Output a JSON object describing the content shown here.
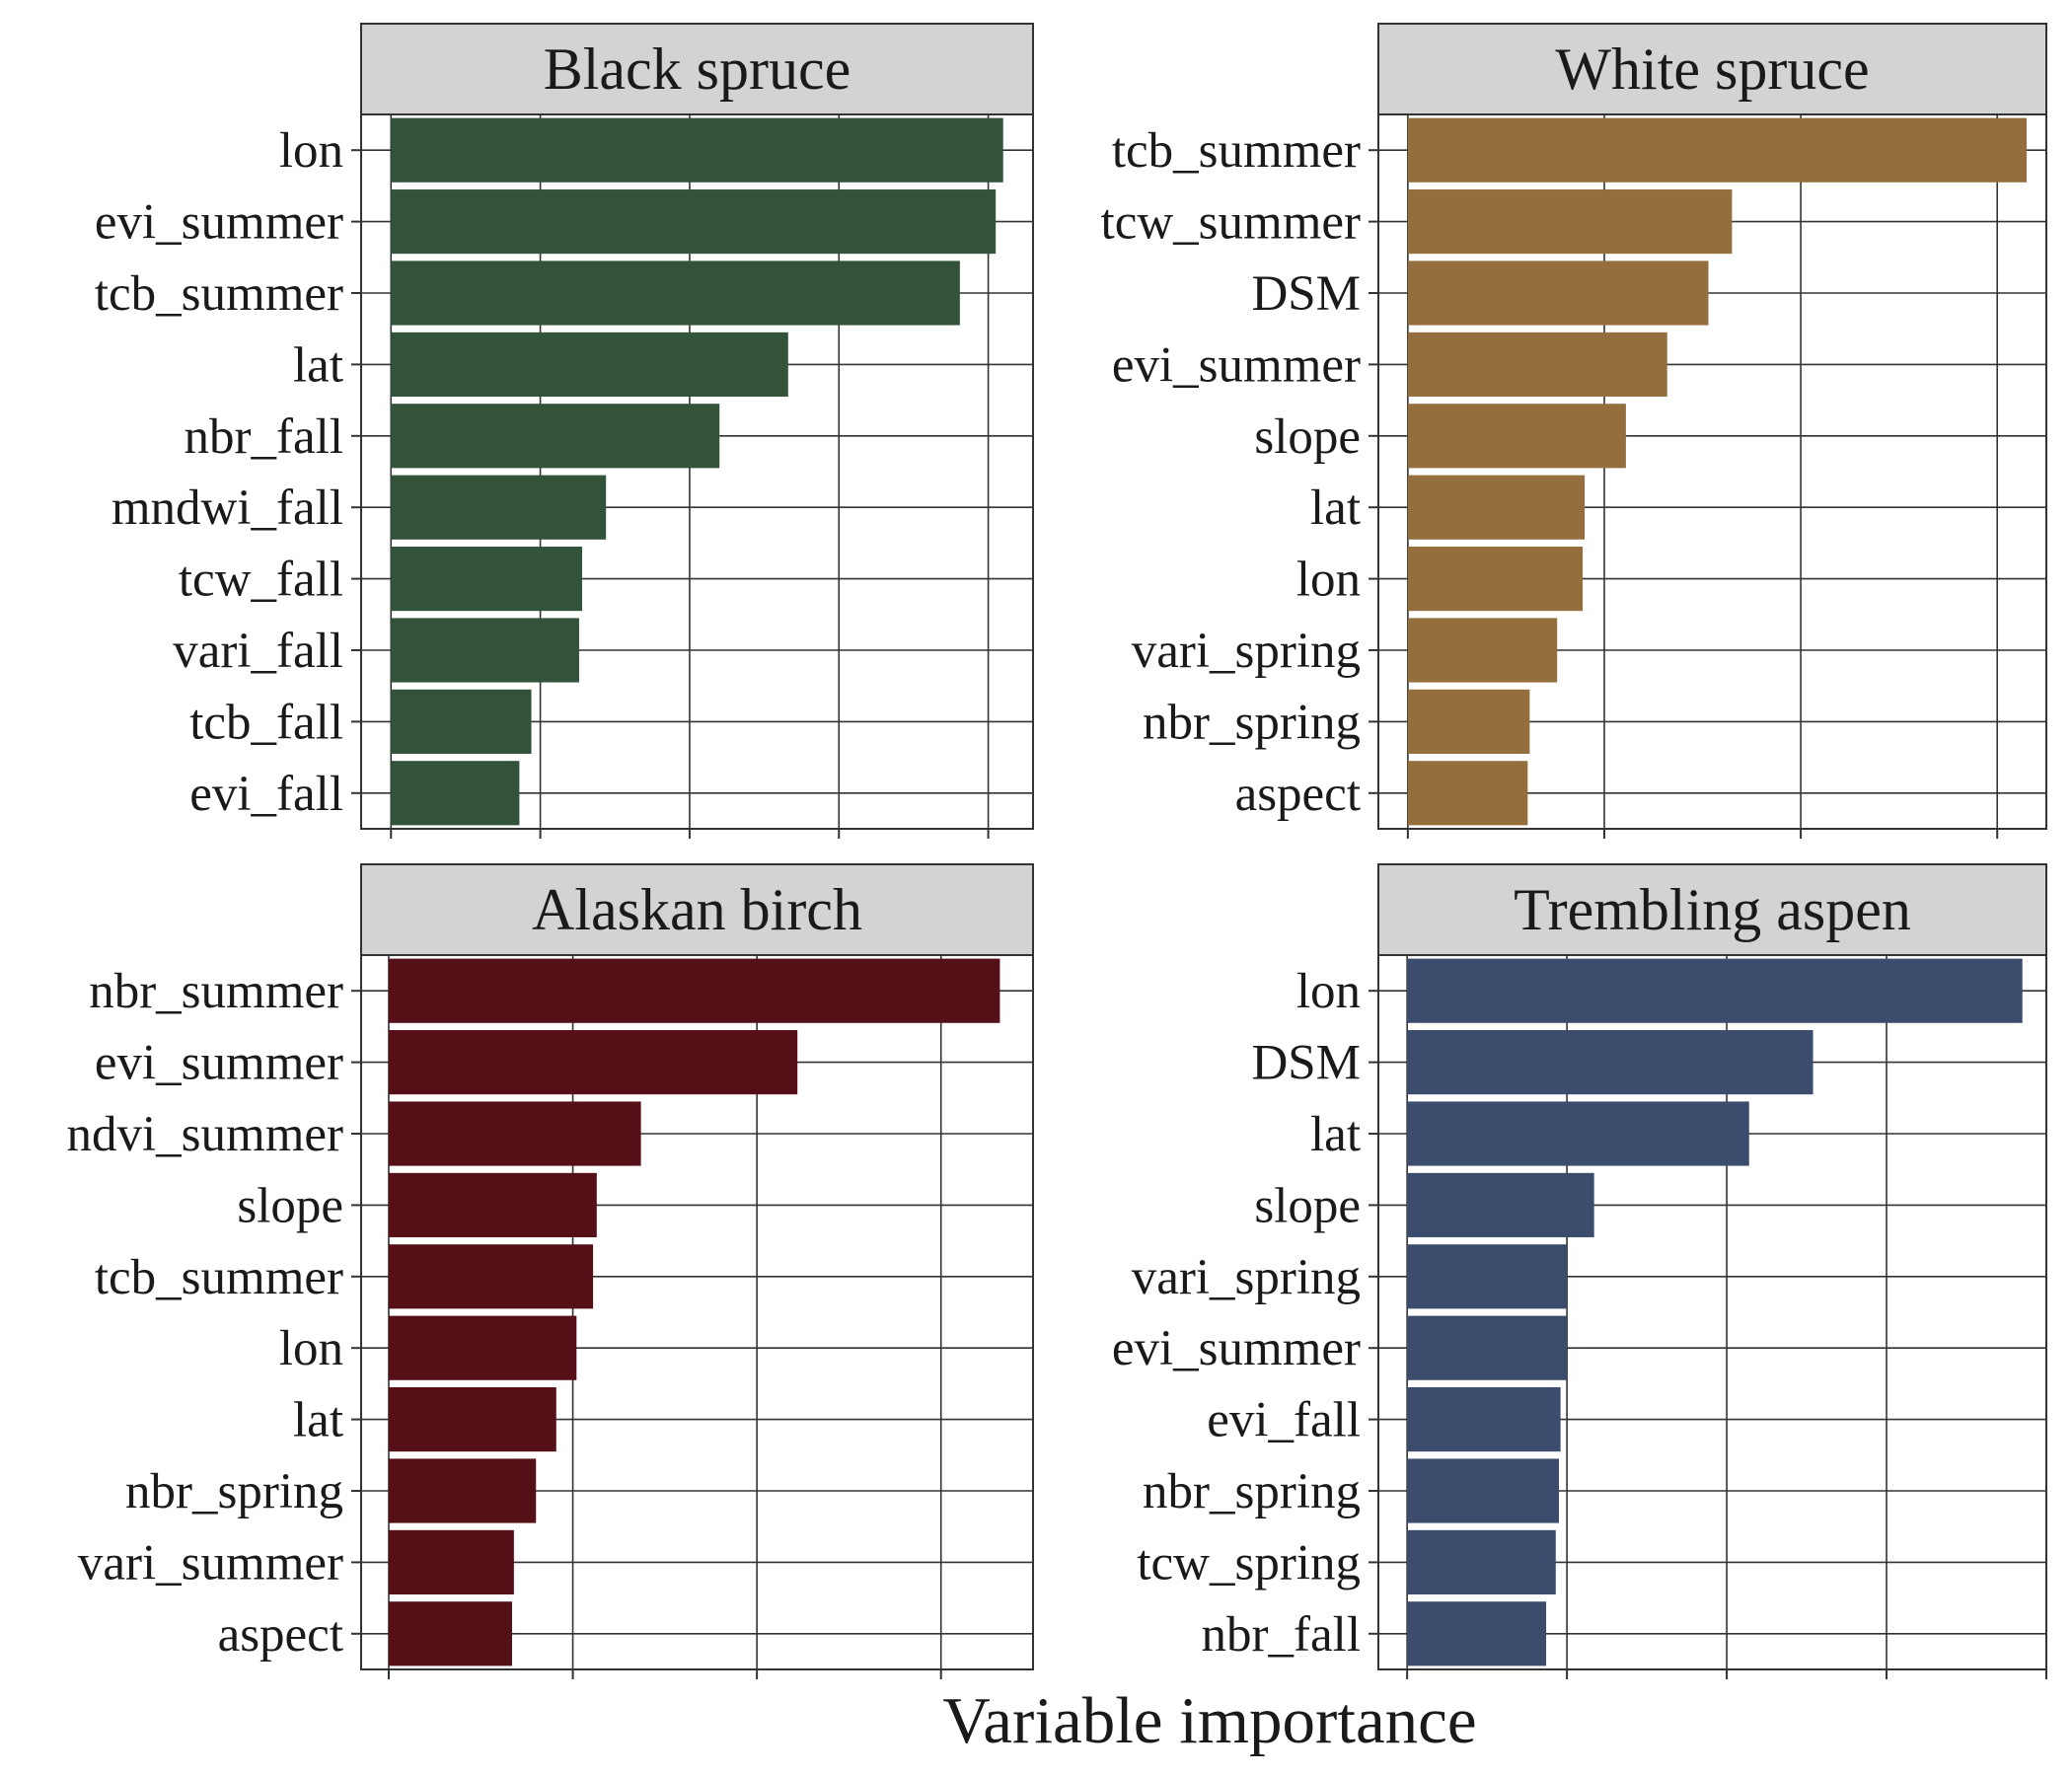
{
  "xlabel": "Variable importance",
  "colors": {
    "panel_border": "#333333",
    "grid": "#333333",
    "strip_fill": "#d3d3d3",
    "background": "#ffffff"
  },
  "chart_data": [
    {
      "type": "bar",
      "orientation": "horizontal",
      "title": "Black spruce",
      "color": "#32533A",
      "categories": [
        "lon",
        "evi_summer",
        "tcb_summer",
        "lat",
        "nbr_fall",
        "mndwi_fall",
        "tcw_fall",
        "vari_fall",
        "tcb_fall",
        "evi_fall"
      ],
      "values": [
        4.1,
        4.05,
        3.81,
        2.66,
        2.2,
        1.44,
        1.28,
        1.26,
        0.94,
        0.86
      ],
      "xlim": [
        -0.2,
        4.3
      ],
      "xticks": [
        0,
        1,
        2,
        3,
        4
      ],
      "tick_labels_shown": false,
      "grid": true
    },
    {
      "type": "bar",
      "orientation": "horizontal",
      "title": "White spruce",
      "color": "#946E3C",
      "categories": [
        "tcb_summer",
        "tcw_summer",
        "DSM",
        "evi_summer",
        "slope",
        "lat",
        "lon",
        "vari_spring",
        "nbr_spring",
        "aspect"
      ],
      "values": [
        31.5,
        16.5,
        15.3,
        13.2,
        11.1,
        9.0,
        8.9,
        7.6,
        6.2,
        6.1
      ],
      "xlim": [
        -1.5,
        32.5
      ],
      "xticks": [
        0,
        10,
        20,
        30
      ],
      "tick_labels_shown": false,
      "grid": true
    },
    {
      "type": "bar",
      "orientation": "horizontal",
      "title": "Alaskan birch",
      "color": "#540F17",
      "categories": [
        "nbr_summer",
        "evi_summer",
        "ndvi_summer",
        "slope",
        "tcb_summer",
        "lon",
        "lat",
        "nbr_spring",
        "vari_summer",
        "aspect"
      ],
      "values": [
        33.2,
        22.2,
        13.7,
        11.3,
        11.1,
        10.2,
        9.1,
        8.0,
        6.8,
        6.7
      ],
      "xlim": [
        -1.5,
        35
      ],
      "xticks": [
        0,
        10,
        20,
        30
      ],
      "tick_labels_shown": false,
      "grid": true
    },
    {
      "type": "bar",
      "orientation": "horizontal",
      "title": "Trembling aspen",
      "color": "#3C4C6C",
      "categories": [
        "lon",
        "DSM",
        "lat",
        "slope",
        "vari_spring",
        "evi_summer",
        "evi_fall",
        "nbr_spring",
        "tcw_spring",
        "nbr_fall"
      ],
      "values": [
        38.5,
        25.4,
        21.4,
        11.7,
        10.0,
        10.0,
        9.6,
        9.5,
        9.3,
        8.7
      ],
      "xlim": [
        -1.8,
        40
      ],
      "xticks": [
        0,
        10,
        20,
        30,
        40
      ],
      "tick_labels_shown": false,
      "grid": true
    }
  ]
}
